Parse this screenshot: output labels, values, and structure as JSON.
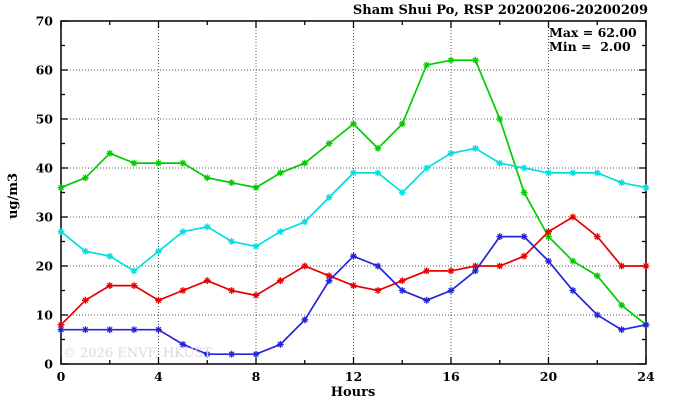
{
  "page": {
    "background": "#ffffff"
  },
  "chart": {
    "title": "Sham Shui Po, RSP 20200206-20200209",
    "annotation": {
      "max_label": "Max = 62.00",
      "min_label": "Min =  2.00"
    },
    "watermark": "© 2026 ENVF, HKUST",
    "xlabel": "Hours",
    "ylabel": "ug/m3"
  },
  "chart_data": {
    "type": "line",
    "title": "Sham Shui Po, RSP 20200206-20200209",
    "xlabel": "Hours",
    "ylabel": "ug/m3",
    "xlim": [
      0,
      24
    ],
    "ylim": [
      0,
      70
    ],
    "x_major_ticks": [
      0,
      4,
      8,
      12,
      16,
      20,
      24
    ],
    "x_minor_step": 2,
    "y_major_ticks": [
      0,
      10,
      20,
      30,
      40,
      50,
      60,
      70
    ],
    "y_minor_step": 5,
    "grid": "dotted-at-major-ticks",
    "legend_position": "none",
    "annotations": {
      "max": 62.0,
      "min": 2.0
    },
    "x": [
      0,
      1,
      2,
      3,
      4,
      5,
      6,
      7,
      8,
      9,
      10,
      11,
      12,
      13,
      14,
      15,
      16,
      17,
      18,
      19,
      20,
      21,
      22,
      23,
      24
    ],
    "series": [
      {
        "name": "series-green",
        "color": "#00cc00",
        "values": [
          36,
          38,
          43,
          41,
          41,
          41,
          38,
          37,
          36,
          39,
          41,
          45,
          49,
          44,
          49,
          61,
          62,
          62,
          50,
          35,
          26,
          21,
          18,
          12,
          8
        ]
      },
      {
        "name": "series-cyan",
        "color": "#00e0e0",
        "values": [
          27,
          23,
          22,
          19,
          23,
          27,
          28,
          25,
          24,
          27,
          29,
          34,
          39,
          39,
          35,
          40,
          43,
          44,
          41,
          40,
          39,
          39,
          39,
          37,
          36
        ]
      },
      {
        "name": "series-red",
        "color": "#e60000",
        "values": [
          8,
          13,
          16,
          16,
          13,
          15,
          17,
          15,
          14,
          17,
          20,
          18,
          16,
          15,
          17,
          19,
          19,
          20,
          20,
          22,
          27,
          30,
          26,
          20,
          20
        ]
      },
      {
        "name": "series-blue",
        "color": "#2424d9",
        "values": [
          7,
          7,
          7,
          7,
          7,
          4,
          2,
          2,
          2,
          4,
          9,
          17,
          22,
          20,
          15,
          13,
          15,
          19,
          26,
          26,
          21,
          15,
          10,
          7,
          8
        ]
      }
    ]
  }
}
